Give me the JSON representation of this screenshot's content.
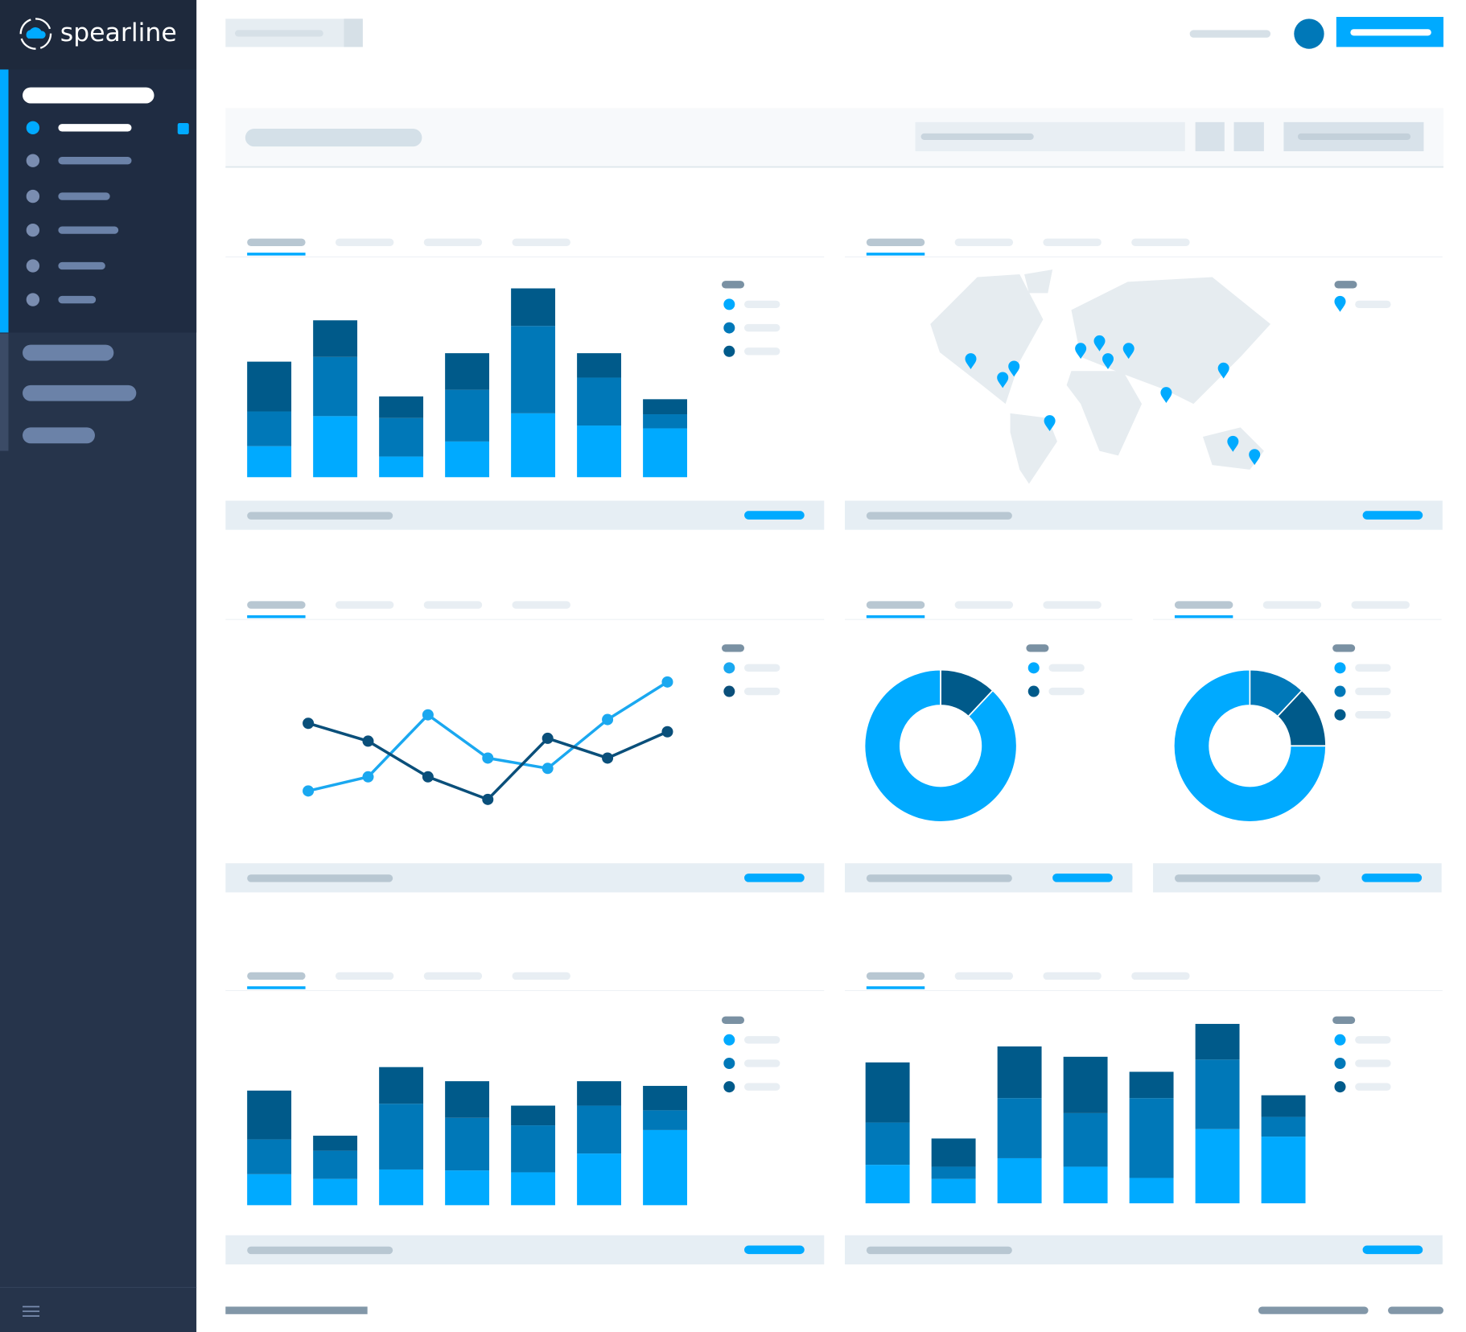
{
  "brand": "spearline",
  "chart_data": [
    {
      "type": "bar",
      "stacked": true,
      "ylim": [
        0,
        210
      ],
      "series": [
        {
          "color": "#00aaff",
          "values": [
            33,
            65,
            22,
            38,
            68,
            55,
            52
          ]
        },
        {
          "color": "#0078b8",
          "values": [
            37,
            63,
            41,
            55,
            93,
            51,
            15
          ]
        },
        {
          "color": "#005a8a",
          "values": [
            53,
            39,
            23,
            39,
            40,
            26,
            16
          ]
        }
      ]
    },
    {
      "type": "line",
      "ylim": [
        0,
        200
      ],
      "series": [
        {
          "color": "#1aa8f0",
          "values": [
            58,
            73,
            139,
            93,
            82,
            134,
            174
          ]
        },
        {
          "color": "#0a4f7a",
          "values": [
            130,
            111,
            73,
            49,
            114,
            93,
            121
          ]
        }
      ]
    },
    {
      "type": "donut",
      "series": [
        {
          "color": "#00aaff",
          "values": [
            88
          ]
        },
        {
          "color": "#005a8a",
          "values": [
            12
          ]
        }
      ]
    },
    {
      "type": "donut",
      "series": [
        {
          "color": "#00aaff",
          "values": [
            75
          ]
        },
        {
          "color": "#0078b8",
          "values": [
            12
          ]
        },
        {
          "color": "#005a8a",
          "values": [
            13
          ]
        }
      ]
    },
    {
      "type": "bar",
      "stacked": true,
      "ylim": [
        0,
        210
      ],
      "series": [
        {
          "color": "#00aaff",
          "values": [
            33,
            28,
            38,
            37,
            35,
            55,
            80
          ]
        },
        {
          "color": "#0078b8",
          "values": [
            37,
            30,
            70,
            56,
            50,
            51,
            21
          ]
        },
        {
          "color": "#005a8a",
          "values": [
            52,
            16,
            39,
            39,
            21,
            26,
            26
          ]
        }
      ]
    },
    {
      "type": "bar",
      "stacked": true,
      "ylim": [
        0,
        210
      ],
      "series": [
        {
          "color": "#00aaff",
          "values": [
            41,
            26,
            48,
            39,
            27,
            79,
            71
          ]
        },
        {
          "color": "#0078b8",
          "values": [
            45,
            13,
            64,
            57,
            85,
            74,
            21
          ]
        },
        {
          "color": "#005a8a",
          "values": [
            64,
            30,
            55,
            60,
            28,
            38,
            23
          ]
        }
      ]
    }
  ]
}
